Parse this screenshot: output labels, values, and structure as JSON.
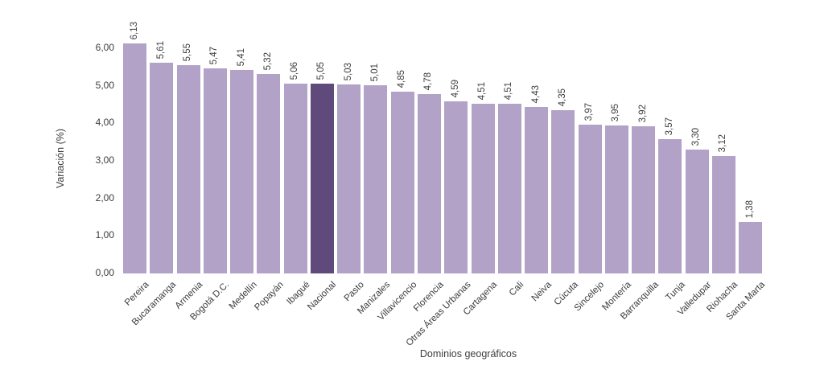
{
  "chart_data": {
    "type": "bar",
    "title": "",
    "xlabel": "Dominios geográficos",
    "ylabel": "Variación (%)",
    "categories": [
      "Pereira",
      "Bucaramanga",
      "Armenia",
      "Bogotá D.C.",
      "Medellín",
      "Popayán",
      "Ibagué",
      "Nacional",
      "Pasto",
      "Manizales",
      "Villavicencio",
      "Florencia",
      "Otras Áreas Urbanas",
      "Cartagena",
      "Cali",
      "Neiva",
      "Cúcuta",
      "Sincelejo",
      "Montería",
      "Barranquilla",
      "Tunja",
      "Valledupar",
      "Riohacha",
      "Santa Marta"
    ],
    "values": [
      6.13,
      5.61,
      5.55,
      5.47,
      5.41,
      5.32,
      5.06,
      5.05,
      5.03,
      5.01,
      4.85,
      4.78,
      4.59,
      4.51,
      4.51,
      4.43,
      4.35,
      3.97,
      3.95,
      3.92,
      3.57,
      3.3,
      3.12,
      1.38
    ],
    "value_labels": [
      "6,13",
      "5,61",
      "5,55",
      "5,47",
      "5,41",
      "5,32",
      "5,06",
      "5,05",
      "5,03",
      "5,01",
      "4,85",
      "4,78",
      "4,59",
      "4,51",
      "4,51",
      "4,43",
      "4,35",
      "3,97",
      "3,95",
      "3,92",
      "3,57",
      "3,30",
      "3,12",
      "1,38"
    ],
    "highlight_category": "Nacional",
    "bar_color": "#b3a2c7",
    "highlight_color": "#604a7b",
    "ylim": [
      0,
      6
    ],
    "ytick_labels": [
      "0,00",
      "1,00",
      "2,00",
      "3,00",
      "4,00",
      "5,00",
      "6,00"
    ],
    "grid": false,
    "legend_position": "none"
  }
}
